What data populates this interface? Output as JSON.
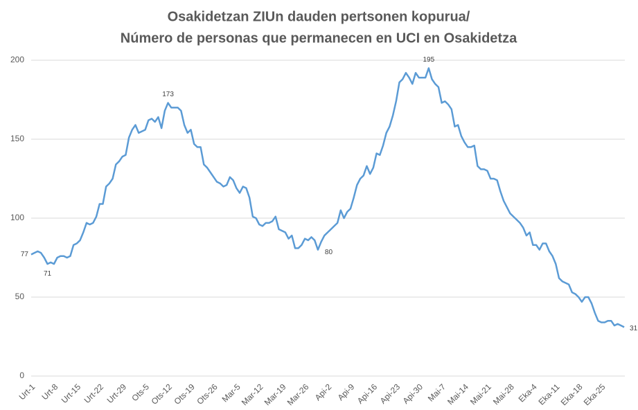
{
  "chart_data": {
    "type": "line",
    "title": "Osakidetzan ZIUn dauden pertsonen kopurua/",
    "subtitle": "Número de personas que permanecen en UCI en Osakidetza",
    "categories": [
      "Urt-1",
      null,
      null,
      null,
      null,
      null,
      null,
      "Urt-8",
      null,
      null,
      null,
      null,
      null,
      null,
      "Urt-15",
      null,
      null,
      null,
      null,
      null,
      null,
      "Urt-22",
      null,
      null,
      null,
      null,
      null,
      null,
      "Urt-29",
      null,
      null,
      null,
      null,
      null,
      null,
      "Ots-5",
      null,
      null,
      null,
      null,
      null,
      null,
      "Ots-12",
      null,
      null,
      null,
      null,
      null,
      null,
      "Ots-19",
      null,
      null,
      null,
      null,
      null,
      null,
      "Ots-26",
      null,
      null,
      null,
      null,
      null,
      null,
      "Mar-5",
      null,
      null,
      null,
      null,
      null,
      null,
      "Mar-12",
      null,
      null,
      null,
      null,
      null,
      null,
      "Mar-19",
      null,
      null,
      null,
      null,
      null,
      null,
      "Mar-26",
      null,
      null,
      null,
      null,
      null,
      null,
      "Api-2",
      null,
      null,
      null,
      null,
      null,
      null,
      "Api-9",
      null,
      null,
      null,
      null,
      null,
      null,
      "Api-16",
      null,
      null,
      null,
      null,
      null,
      null,
      "Api-23",
      null,
      null,
      null,
      null,
      null,
      null,
      "Api-30",
      null,
      null,
      null,
      null,
      null,
      null,
      "Mai-7",
      null,
      null,
      null,
      null,
      null,
      null,
      "Mai-14",
      null,
      null,
      null,
      null,
      null,
      null,
      "Mai-21",
      null,
      null,
      null,
      null,
      null,
      null,
      "Mai-28",
      null,
      null,
      null,
      null,
      null,
      null,
      "Eka-4",
      null,
      null,
      null,
      null,
      null,
      null,
      "Eka-11",
      null,
      null,
      null,
      null,
      null,
      null,
      "Eka-18",
      null,
      null,
      null,
      null,
      null,
      null,
      "Eka-25",
      null,
      null,
      null,
      null,
      null,
      null,
      null
    ],
    "values": [
      77,
      78,
      79,
      78,
      75,
      71,
      72,
      71,
      75,
      76,
      76,
      75,
      76,
      83,
      84,
      86,
      91,
      97,
      96,
      97,
      101,
      109,
      109,
      120,
      122,
      125,
      134,
      136,
      139,
      140,
      151,
      156,
      159,
      154,
      155,
      156,
      162,
      163,
      161,
      164,
      157,
      168,
      173,
      170,
      170,
      170,
      168,
      159,
      154,
      156,
      147,
      145,
      145,
      134,
      132,
      129,
      126,
      123,
      122,
      120,
      121,
      126,
      124,
      119,
      116,
      120,
      119,
      113,
      101,
      100,
      96,
      95,
      97,
      97,
      98,
      101,
      93,
      92,
      91,
      87,
      89,
      81,
      81,
      83,
      87,
      86,
      88,
      86,
      80,
      85,
      89,
      91,
      93,
      95,
      97,
      105,
      100,
      104,
      106,
      113,
      121,
      125,
      127,
      133,
      128,
      132,
      141,
      140,
      146,
      154,
      158,
      165,
      174,
      186,
      188,
      192,
      189,
      185,
      192,
      189,
      189,
      189,
      195,
      188,
      185,
      183,
      173,
      174,
      172,
      169,
      158,
      159,
      152,
      148,
      145,
      145,
      146,
      133,
      131,
      131,
      130,
      125,
      125,
      124,
      117,
      111,
      107,
      103,
      101,
      99,
      97,
      94,
      89,
      91,
      83,
      83,
      80,
      84,
      84,
      79,
      76,
      71,
      62,
      60,
      59,
      58,
      53,
      52,
      50,
      47,
      50,
      50,
      46,
      40,
      35,
      34,
      34,
      35,
      35,
      32,
      33,
      32,
      31
    ],
    "labeled_points": [
      0,
      5,
      42,
      88,
      122,
      182
    ],
    "color": "#5b9bd5",
    "ylim": [
      0,
      200
    ],
    "yticks": [
      0,
      50,
      100,
      150,
      200
    ],
    "grid": true
  }
}
